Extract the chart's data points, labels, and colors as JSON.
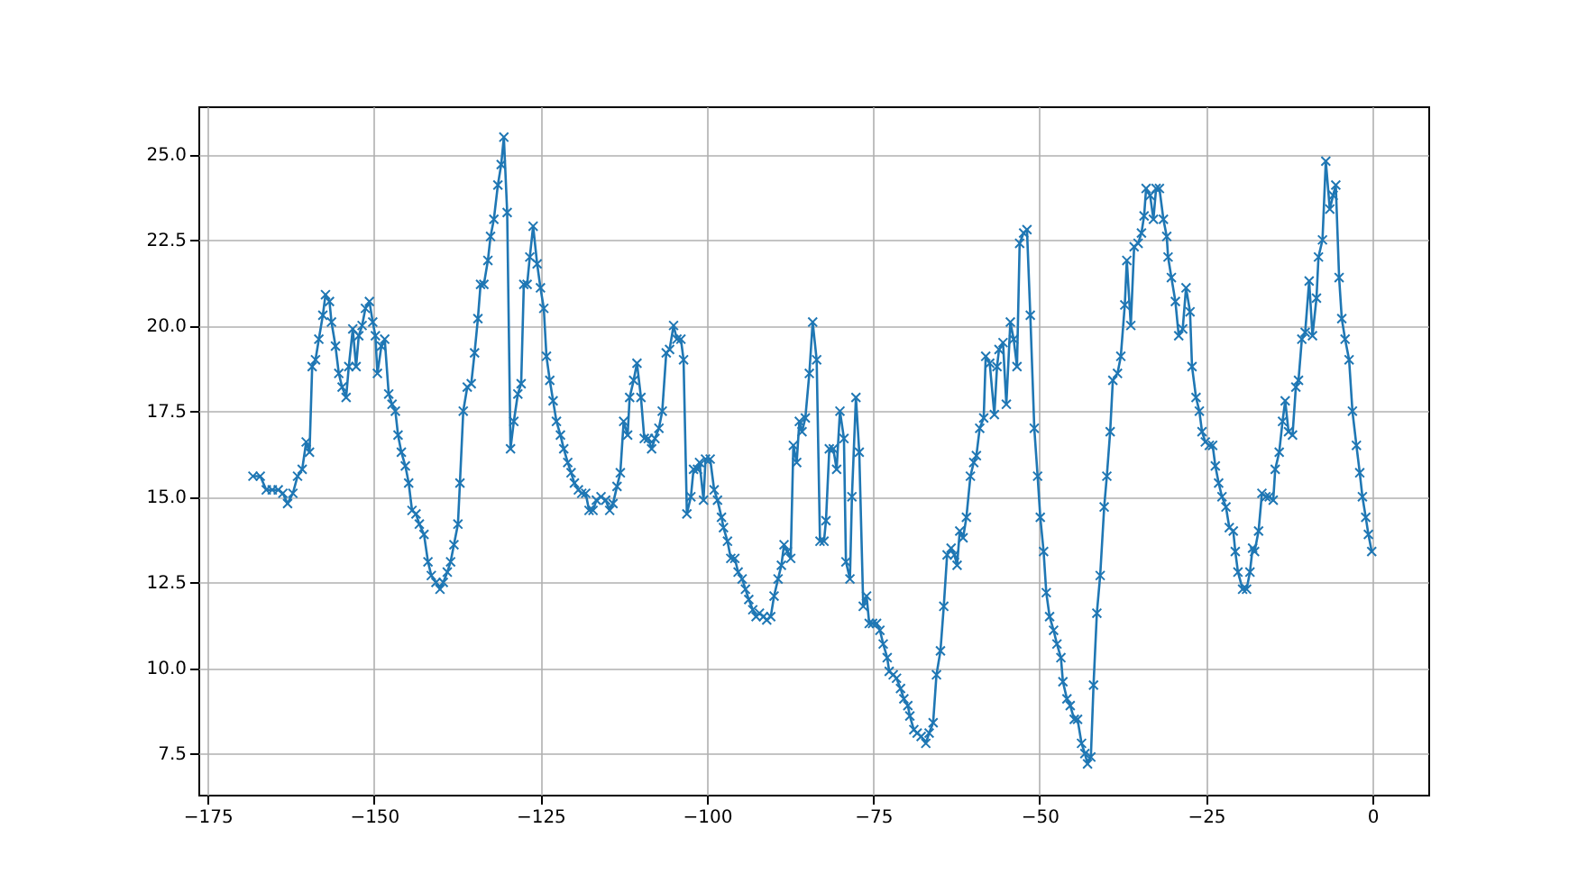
{
  "chart_data": {
    "type": "line",
    "marker": "cross",
    "line_style": "solid",
    "grid": true,
    "xlim": [
      -176.4,
      8.4
    ],
    "ylim": [
      6.3,
      26.4
    ],
    "xticks": [
      {
        "value": -175,
        "label": "−175"
      },
      {
        "value": -150,
        "label": "−150"
      },
      {
        "value": -125,
        "label": "−125"
      },
      {
        "value": -100,
        "label": "−100"
      },
      {
        "value": -75,
        "label": "−75"
      },
      {
        "value": -50,
        "label": "−50"
      },
      {
        "value": -25,
        "label": "−25"
      },
      0
    ],
    "yticks": [
      7.5,
      {
        "value": 10,
        "label": "10.0"
      },
      12.5,
      {
        "value": 15,
        "label": "15.0"
      },
      17.5,
      {
        "value": 20,
        "label": "20.0"
      },
      22.5,
      {
        "value": 25,
        "label": "25.0"
      }
    ],
    "series": [
      {
        "color": "#1f77b4",
        "x": [
          -168.2,
          -167.1,
          -166.2,
          -165.3,
          -164.4,
          -163.7,
          -163.0,
          -162.2,
          -161.5,
          -160.8,
          -160.2,
          -159.7,
          -159.3,
          -158.8,
          -158.3,
          -157.7,
          -157.3,
          -156.7,
          -156.4,
          -155.8,
          -155.3,
          -154.8,
          -154.2,
          -153.8,
          -153.2,
          -152.7,
          -152.3,
          -151.8,
          -151.3,
          -150.7,
          -150.2,
          -149.8,
          -149.5,
          -148.9,
          -148.4,
          -147.8,
          -147.3,
          -146.8,
          -146.4,
          -145.9,
          -145.3,
          -144.8,
          -144.3,
          -143.7,
          -143.2,
          -142.5,
          -141.9,
          -141.4,
          -140.7,
          -140.1,
          -139.6,
          -139.0,
          -138.5,
          -138.0,
          -137.4,
          -137.1,
          -136.6,
          -136.0,
          -135.4,
          -134.9,
          -134.4,
          -134.0,
          -133.5,
          -132.9,
          -132.5,
          -132.0,
          -131.4,
          -130.9,
          -130.5,
          -130.0,
          -129.5,
          -129.0,
          -128.4,
          -127.9,
          -127.5,
          -127.0,
          -126.6,
          -126.1,
          -125.5,
          -125.0,
          -124.5,
          -124.1,
          -123.6,
          -123.1,
          -122.6,
          -122.0,
          -121.5,
          -120.9,
          -120.4,
          -119.9,
          -119.3,
          -118.8,
          -118.2,
          -117.7,
          -117.1,
          -116.6,
          -115.9,
          -115.2,
          -114.6,
          -114.1,
          -113.5,
          -113.0,
          -112.5,
          -111.9,
          -111.6,
          -111.0,
          -110.5,
          -109.9,
          -109.4,
          -108.8,
          -108.3,
          -107.8,
          -107.2,
          -106.7,
          -106.1,
          -105.6,
          -105.0,
          -104.5,
          -103.9,
          -103.5,
          -103.0,
          -102.4,
          -102.0,
          -101.4,
          -101.1,
          -100.5,
          -100.2,
          -99.5,
          -98.9,
          -98.4,
          -97.8,
          -97.5,
          -96.9,
          -96.4,
          -95.8,
          -95.3,
          -94.7,
          -94.2,
          -93.7,
          -93.1,
          -92.6,
          -92.1,
          -91.5,
          -91.0,
          -90.4,
          -89.9,
          -89.3,
          -88.8,
          -88.4,
          -87.9,
          -87.4,
          -87.0,
          -86.5,
          -86.1,
          -85.7,
          -85.2,
          -84.6,
          -84.1,
          -83.5,
          -83.0,
          -82.4,
          -82.1,
          -81.6,
          -81.0,
          -80.5,
          -80.0,
          -79.4,
          -79.1,
          -78.5,
          -78.2,
          -77.6,
          -77.1,
          -76.5,
          -76.0,
          -75.6,
          -75.1,
          -74.5,
          -74.0,
          -73.5,
          -72.9,
          -72.6,
          -72.0,
          -71.5,
          -70.9,
          -70.4,
          -69.8,
          -69.5,
          -68.9,
          -68.4,
          -67.8,
          -67.1,
          -66.6,
          -66.0,
          -65.5,
          -64.9,
          -64.4,
          -63.9,
          -63.3,
          -62.8,
          -62.4,
          -62.0,
          -61.5,
          -61.0,
          -60.4,
          -59.9,
          -59.5,
          -59.0,
          -58.4,
          -58.1,
          -57.5,
          -56.8,
          -56.4,
          -56.1,
          -55.5,
          -55.0,
          -54.4,
          -53.9,
          -53.4,
          -53.0,
          -52.4,
          -51.9,
          -51.4,
          -50.8,
          -50.3,
          -49.9,
          -49.4,
          -49.0,
          -48.5,
          -47.9,
          -47.4,
          -46.8,
          -46.5,
          -45.9,
          -45.4,
          -44.8,
          -44.3,
          -43.7,
          -43.2,
          -42.8,
          -42.3,
          -41.9,
          -41.4,
          -40.9,
          -40.3,
          -39.9,
          -39.4,
          -39.0,
          -38.3,
          -37.8,
          -37.2,
          -36.9,
          -36.3,
          -35.8,
          -35.2,
          -34.7,
          -34.3,
          -34.0,
          -33.4,
          -32.9,
          -32.5,
          -32.0,
          -31.4,
          -30.9,
          -30.7,
          -30.2,
          -29.6,
          -29.1,
          -28.5,
          -28.0,
          -27.4,
          -27.1,
          -26.5,
          -26.0,
          -25.6,
          -25.1,
          -24.5,
          -24.0,
          -23.6,
          -23.1,
          -22.6,
          -22.0,
          -21.5,
          -20.9,
          -20.6,
          -20.2,
          -19.5,
          -18.9,
          -18.4,
          -18.0,
          -17.7,
          -17.1,
          -16.6,
          -16.0,
          -15.5,
          -14.9,
          -14.6,
          -14.0,
          -13.5,
          -13.1,
          -12.6,
          -12.0,
          -11.5,
          -11.1,
          -10.6,
          -10.1,
          -9.5,
          -9.0,
          -8.4,
          -8.1,
          -7.5,
          -7.0,
          -6.4,
          -5.9,
          -5.5,
          -5.0,
          -4.6,
          -4.1,
          -3.5,
          -3.0,
          -2.4,
          -1.9,
          -1.5,
          -1.0,
          -0.6,
          -0.1
        ],
        "values": [
          15.6,
          15.6,
          15.2,
          15.2,
          15.2,
          15.1,
          14.8,
          15.1,
          15.6,
          15.8,
          16.6,
          16.3,
          18.8,
          19.0,
          19.6,
          20.3,
          20.9,
          20.7,
          20.1,
          19.4,
          18.6,
          18.2,
          17.9,
          18.8,
          19.9,
          18.8,
          19.7,
          20.0,
          20.5,
          20.7,
          20.1,
          19.7,
          18.6,
          19.4,
          19.6,
          18.0,
          17.7,
          17.5,
          16.8,
          16.3,
          15.9,
          15.4,
          14.6,
          14.5,
          14.2,
          13.9,
          13.1,
          12.7,
          12.5,
          12.3,
          12.5,
          12.8,
          13.1,
          13.6,
          14.2,
          15.4,
          17.5,
          18.2,
          18.3,
          19.2,
          20.2,
          21.2,
          21.2,
          21.9,
          22.6,
          23.1,
          24.1,
          24.7,
          25.5,
          23.3,
          16.4,
          17.2,
          18.0,
          18.3,
          21.2,
          21.2,
          22.0,
          22.9,
          21.8,
          21.1,
          20.5,
          19.1,
          18.4,
          17.8,
          17.2,
          16.8,
          16.4,
          16.0,
          15.7,
          15.4,
          15.2,
          15.1,
          15.1,
          14.6,
          14.6,
          14.9,
          15.0,
          14.9,
          14.6,
          14.8,
          15.3,
          15.7,
          17.2,
          16.8,
          17.9,
          18.4,
          18.9,
          17.9,
          16.7,
          16.7,
          16.4,
          16.7,
          17.0,
          17.5,
          19.2,
          19.3,
          20.0,
          19.6,
          19.6,
          19.0,
          14.5,
          15.0,
          15.8,
          15.8,
          16.0,
          14.9,
          16.1,
          16.1,
          15.2,
          14.9,
          14.4,
          14.1,
          13.7,
          13.2,
          13.2,
          12.8,
          12.6,
          12.3,
          12.0,
          11.7,
          11.5,
          11.6,
          11.5,
          11.4,
          11.5,
          12.1,
          12.6,
          13.0,
          13.6,
          13.4,
          13.2,
          16.5,
          16.0,
          17.2,
          16.9,
          17.3,
          18.6,
          20.1,
          19.0,
          13.7,
          13.7,
          14.3,
          16.4,
          16.4,
          15.8,
          17.5,
          16.7,
          13.1,
          12.6,
          15.0,
          17.9,
          16.3,
          11.8,
          12.1,
          11.3,
          11.3,
          11.3,
          11.1,
          10.7,
          10.3,
          9.9,
          9.8,
          9.7,
          9.4,
          9.1,
          8.9,
          8.6,
          8.2,
          8.1,
          8.0,
          7.8,
          8.1,
          8.4,
          9.8,
          10.5,
          11.8,
          13.3,
          13.5,
          13.3,
          13.0,
          14.0,
          13.8,
          14.4,
          15.6,
          16.0,
          16.2,
          17.0,
          17.3,
          19.1,
          18.9,
          17.4,
          18.8,
          19.3,
          19.5,
          17.7,
          20.1,
          19.6,
          18.8,
          22.4,
          22.7,
          22.8,
          20.3,
          17.0,
          15.6,
          14.4,
          13.4,
          12.2,
          11.5,
          11.1,
          10.7,
          10.3,
          9.6,
          9.1,
          8.9,
          8.5,
          8.5,
          7.8,
          7.5,
          7.2,
          7.4,
          9.5,
          11.6,
          12.7,
          14.7,
          15.6,
          16.9,
          18.4,
          18.6,
          19.1,
          20.6,
          21.9,
          20.0,
          22.3,
          22.4,
          22.7,
          23.2,
          24.0,
          23.8,
          23.1,
          24.0,
          24.0,
          23.1,
          22.6,
          22.0,
          21.4,
          20.7,
          19.7,
          19.9,
          21.1,
          20.4,
          18.8,
          17.9,
          17.5,
          16.9,
          16.6,
          16.5,
          16.5,
          15.9,
          15.4,
          15.0,
          14.7,
          14.1,
          14.0,
          13.4,
          12.8,
          12.3,
          12.3,
          12.8,
          13.5,
          13.4,
          14.0,
          15.1,
          15.0,
          15.0,
          14.9,
          15.8,
          16.3,
          17.2,
          17.8,
          16.9,
          16.8,
          18.2,
          18.4,
          19.6,
          19.8,
          21.3,
          19.7,
          20.8,
          22.0,
          22.5,
          24.8,
          23.4,
          23.8,
          24.1,
          21.4,
          20.2,
          19.6,
          19.0,
          17.5,
          16.5,
          15.7,
          15.0,
          14.4,
          13.9,
          13.4
        ]
      }
    ]
  }
}
